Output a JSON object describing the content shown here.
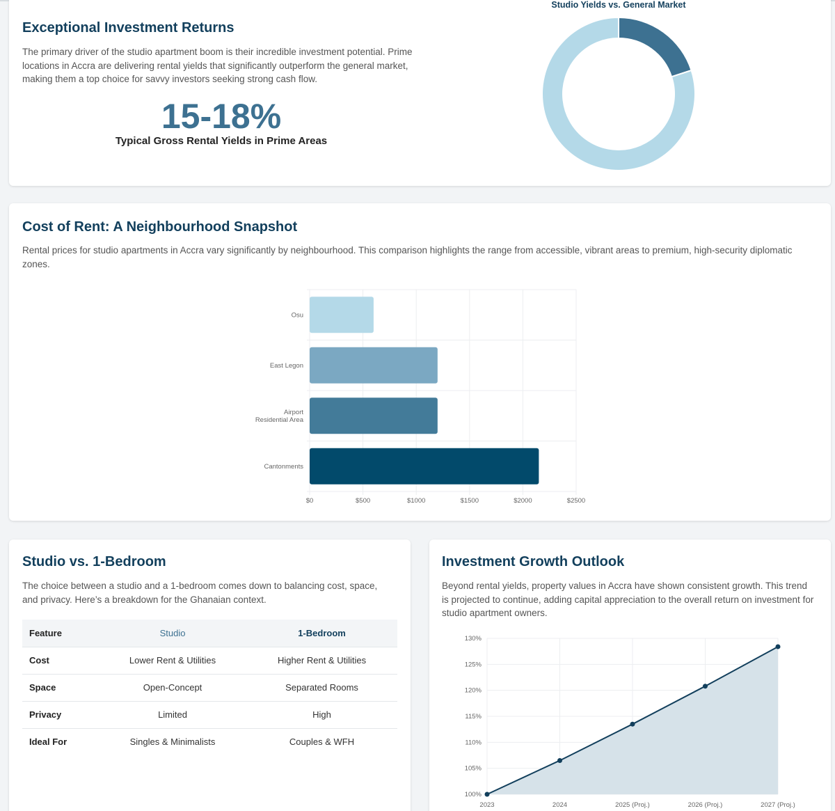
{
  "investment": {
    "title": "Exceptional Investment Returns",
    "description": "The primary driver of the studio apartment boom is their incredible investment potential. Prime locations in Accra are delivering rental yields that significantly outperform the general market, making them a top choice for savvy investors seeking strong cash flow.",
    "headline_value": "15-18%",
    "headline_caption": "Typical Gross Rental Yields in Prime Areas",
    "donut_title": "Studio Yields vs. General Market"
  },
  "rent": {
    "title": "Cost of Rent: A Neighbourhood Snapshot",
    "description": "Rental prices for studio apartments in Accra vary significantly by neighbourhood. This comparison highlights the range from accessible, vibrant areas to premium, high-security diplomatic zones."
  },
  "comparison": {
    "title": "Studio vs. 1-Bedroom",
    "description": "The choice between a studio and a 1-bedroom comes down to balancing cost, space, and privacy. Here’s a breakdown for the Ghanaian context.",
    "headers": [
      "Feature",
      "Studio",
      "1-Bedroom"
    ],
    "rows": [
      [
        "Cost",
        "Lower Rent & Utilities",
        "Higher Rent & Utilities"
      ],
      [
        "Space",
        "Open-Concept",
        "Separated Rooms"
      ],
      [
        "Privacy",
        "Limited",
        "High"
      ],
      [
        "Ideal For",
        "Singles & Minimalists",
        "Couples & WFH"
      ]
    ]
  },
  "growth": {
    "title": "Investment Growth Outlook",
    "description": "Beyond rental yields, property values in Accra have shown consistent growth. This trend is projected to continue, adding capital appreciation to the overall return on investment for studio apartment owners."
  },
  "colors": {
    "primary": "#123f5c",
    "accent": "#3d7191",
    "light": "#b4d9e8",
    "mid": "#7ba8c2",
    "dark": "#024a6b"
  },
  "chart_data": [
    {
      "type": "pie",
      "title": "Studio Yields vs. General Market",
      "values": [
        1,
        4
      ],
      "colors": [
        "#3d7191",
        "#b4d9e8"
      ],
      "legend": "none"
    },
    {
      "type": "bar",
      "orientation": "horizontal",
      "categories": [
        "Osu",
        "East Legon",
        "Airport Residential Area",
        "Cantonments"
      ],
      "values": [
        600,
        1200,
        1200,
        2150
      ],
      "colors": [
        "#b4d9e8",
        "#7ba8c2",
        "#437b99",
        "#024a6b"
      ],
      "xlim": [
        0,
        2500
      ],
      "xticks": [
        "$0",
        "$500",
        "$1000",
        "$1500",
        "$2000",
        "$2500"
      ],
      "grid": true
    },
    {
      "type": "area",
      "categories": [
        "2023",
        "2024",
        "2025 (Proj.)",
        "2026 (Proj.)",
        "2027 (Proj.)"
      ],
      "values": [
        100,
        106.5,
        113.5,
        120.8,
        128.4
      ],
      "ylim": [
        100,
        130
      ],
      "yticks": [
        "100%",
        "105%",
        "110%",
        "115%",
        "120%",
        "125%",
        "130%"
      ],
      "grid": true
    }
  ]
}
